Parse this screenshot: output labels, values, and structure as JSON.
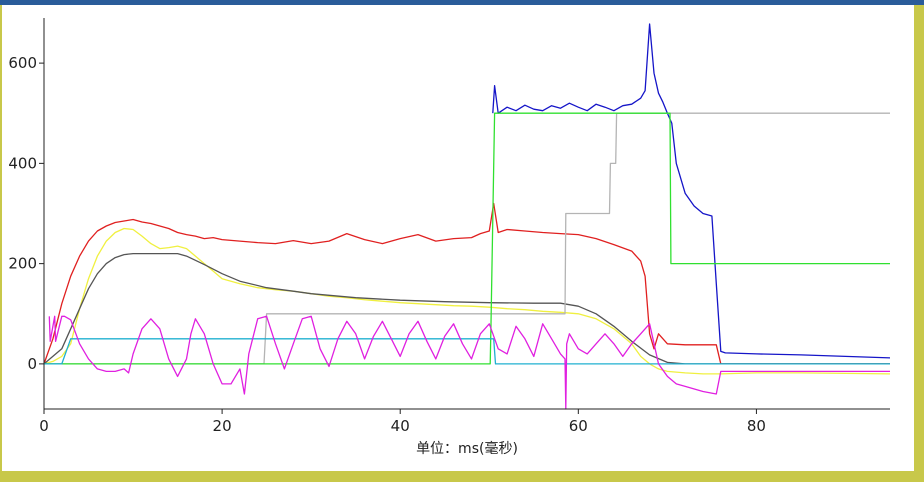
{
  "window": {
    "accent_color": "#2a5c9a",
    "frame_color": "#c8c84a"
  },
  "chart_data": {
    "type": "line",
    "title": "",
    "xlabel": "单位：ms(毫秒)",
    "ylabel": "",
    "xlim": [
      0,
      95
    ],
    "ylim": [
      -90,
      690
    ],
    "xticks": [
      "0",
      "20",
      "40",
      "60",
      "80"
    ],
    "yticks": [
      "0",
      "200",
      "400",
      "600"
    ],
    "grid": false,
    "legend": "none",
    "series": [
      {
        "color": "#1515c8",
        "x": [
          50.4,
          50.6,
          51,
          52,
          53,
          54,
          55,
          56,
          57,
          58,
          59,
          60,
          61,
          62,
          63,
          64,
          65,
          66,
          67,
          67.5,
          68,
          68.5,
          69,
          69.5,
          70,
          70.5,
          71,
          72,
          73,
          74,
          75,
          75.5,
          76,
          76.5,
          80,
          85,
          90,
          95
        ],
        "y": [
          500,
          555,
          500,
          512,
          505,
          516,
          508,
          505,
          515,
          510,
          520,
          512,
          505,
          518,
          512,
          505,
          515,
          518,
          530,
          545,
          678,
          580,
          540,
          522,
          500,
          480,
          400,
          340,
          315,
          300,
          295,
          160,
          25,
          22,
          20,
          18,
          15,
          12
        ]
      },
      {
        "color": "#e02020",
        "x": [
          0,
          1,
          2,
          3,
          4,
          5,
          6,
          7,
          8,
          9,
          10,
          11,
          12,
          13,
          14,
          15,
          16,
          17,
          18,
          19,
          20,
          22,
          24,
          26,
          28,
          30,
          32,
          34,
          36,
          38,
          40,
          42,
          44,
          46,
          48,
          49,
          50,
          50.5,
          51,
          52,
          54,
          56,
          58,
          60,
          62,
          64,
          66,
          67,
          67.5,
          68,
          68.5,
          69,
          70,
          72,
          74,
          75.5,
          76,
          95
        ],
        "y": [
          0,
          50,
          120,
          175,
          215,
          245,
          265,
          275,
          282,
          285,
          288,
          283,
          280,
          275,
          270,
          262,
          258,
          255,
          250,
          252,
          248,
          245,
          242,
          240,
          246,
          240,
          245,
          260,
          248,
          240,
          250,
          258,
          245,
          250,
          252,
          260,
          265,
          320,
          262,
          268,
          265,
          262,
          260,
          258,
          250,
          238,
          225,
          205,
          175,
          60,
          30,
          60,
          40,
          38,
          38,
          38,
          0,
          0
        ]
      },
      {
        "color": "#f0f040",
        "x": [
          0,
          1,
          2,
          3,
          4,
          5,
          6,
          7,
          8,
          9,
          10,
          11,
          12,
          13,
          14,
          15,
          16,
          17,
          18,
          19,
          20,
          22,
          24,
          26,
          28,
          30,
          32,
          34,
          36,
          38,
          40,
          42,
          44,
          46,
          48,
          50,
          52,
          54,
          56,
          58,
          60,
          62,
          64,
          66,
          67,
          68,
          69,
          70,
          72,
          74,
          76,
          80,
          85,
          90,
          95
        ],
        "y": [
          0,
          5,
          15,
          40,
          110,
          170,
          215,
          245,
          262,
          270,
          268,
          255,
          240,
          230,
          232,
          235,
          230,
          215,
          200,
          185,
          170,
          160,
          152,
          148,
          145,
          140,
          135,
          132,
          128,
          125,
          122,
          120,
          118,
          116,
          115,
          113,
          110,
          108,
          105,
          103,
          100,
          90,
          70,
          40,
          15,
          0,
          -10,
          -15,
          -18,
          -20,
          -20,
          -18,
          -18,
          -19,
          -20
        ]
      },
      {
        "color": "#555555",
        "x": [
          0,
          2,
          3,
          4,
          5,
          6,
          7,
          8,
          9,
          10,
          11,
          12,
          13,
          14,
          15,
          16,
          18,
          20,
          22,
          25,
          28,
          30,
          35,
          40,
          45,
          50,
          55,
          58,
          60,
          62,
          64,
          66,
          68,
          70,
          72,
          75,
          80,
          85,
          90,
          95
        ],
        "y": [
          0,
          30,
          70,
          110,
          150,
          180,
          200,
          212,
          218,
          220,
          220,
          220,
          220,
          220,
          220,
          215,
          198,
          180,
          165,
          152,
          145,
          140,
          132,
          127,
          124,
          122,
          121,
          121,
          115,
          100,
          75,
          45,
          18,
          3,
          0,
          0,
          0,
          0,
          0,
          0
        ]
      },
      {
        "color": "#b4b4b4",
        "x": [
          0,
          24.7,
          25,
          50,
          58.5,
          58.6,
          63.5,
          63.6,
          64.2,
          64.3,
          95
        ],
        "y": [
          0,
          0,
          100,
          100,
          100,
          300,
          300,
          400,
          400,
          500,
          500
        ]
      },
      {
        "color": "#30e030",
        "x": [
          0,
          50.1,
          50.2,
          50.6,
          70.3,
          70.4,
          95
        ],
        "y": [
          0,
          0,
          80,
          500,
          500,
          200,
          200
        ]
      },
      {
        "color": "#20b0d0",
        "x": [
          0,
          2,
          3,
          20,
          40,
          50.5,
          50.7,
          95
        ],
        "y": [
          0,
          0,
          50,
          50,
          50,
          50,
          0,
          0
        ]
      },
      {
        "color": "#e020e0",
        "x": [
          0.6,
          0.7,
          1.2,
          1.3,
          2.0,
          2.3,
          3,
          4,
          5,
          6,
          7,
          8,
          9,
          9.5,
          10,
          11,
          12,
          13,
          14,
          15,
          16,
          16.5,
          17,
          18,
          19,
          20,
          21,
          22,
          22.5,
          23,
          24,
          25,
          26,
          27,
          28,
          29,
          30,
          31,
          32,
          33,
          34,
          35,
          36,
          37,
          38,
          39,
          40,
          41,
          42,
          43,
          44,
          45,
          46,
          47,
          48,
          49,
          50,
          51,
          52,
          53,
          54,
          55,
          56,
          57,
          58,
          58.5,
          58.6,
          58.7,
          59,
          60,
          61,
          62,
          63,
          64,
          65,
          66,
          67,
          68,
          69,
          70,
          71,
          72,
          74,
          75.5,
          76,
          80,
          85,
          90,
          95
        ],
        "y": [
          95,
          45,
          95,
          45,
          95,
          95,
          88,
          40,
          10,
          -10,
          -15,
          -15,
          -10,
          -18,
          20,
          70,
          90,
          70,
          10,
          -25,
          10,
          60,
          90,
          60,
          0,
          -40,
          -40,
          -10,
          -60,
          20,
          90,
          95,
          40,
          -10,
          40,
          90,
          95,
          30,
          -5,
          50,
          85,
          60,
          10,
          55,
          85,
          50,
          15,
          60,
          85,
          45,
          10,
          55,
          80,
          40,
          10,
          60,
          80,
          30,
          20,
          75,
          50,
          15,
          80,
          50,
          20,
          10,
          -90,
          40,
          60,
          30,
          20,
          40,
          60,
          40,
          15,
          40,
          60,
          80,
          0,
          -25,
          -40,
          -45,
          -55,
          -60,
          -15,
          -15,
          -15,
          -15,
          -15
        ]
      }
    ]
  }
}
